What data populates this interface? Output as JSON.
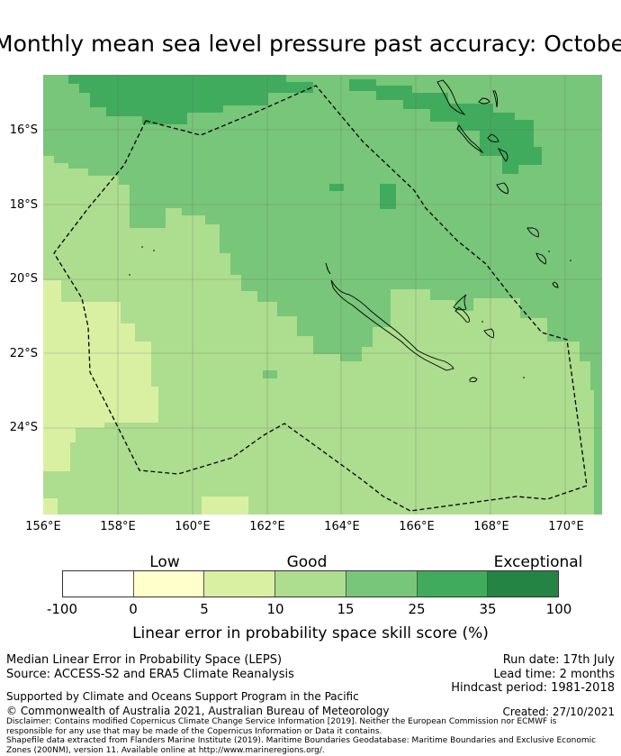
{
  "title": "Monthly mean sea level pressure past accuracy: October",
  "map": {
    "lon_labels": [
      "156°E",
      "158°E",
      "160°E",
      "162°E",
      "164°E",
      "166°E",
      "168°E",
      "170°E"
    ],
    "lat_labels": [
      "16°S",
      "18°S",
      "20°S",
      "22°S",
      "24°S"
    ],
    "colors": {
      "band_0_5": "#ffffcc",
      "band_5_10": "#d9f0a3",
      "band_10_15": "#addd8e",
      "band_15_25": "#78c679",
      "band_25_35": "#41ab5d",
      "band_35_100": "#238443",
      "coastline": "#000000",
      "eez_boundary": "#000000",
      "gridline": "#808080"
    }
  },
  "legend": {
    "categories": [
      "Low",
      "Good",
      "Exceptional"
    ],
    "ticks": [
      "-100",
      "0",
      "5",
      "10",
      "15",
      "25",
      "35",
      "100"
    ],
    "colors": [
      "#ffffff",
      "#ffffcc",
      "#d9f0a3",
      "#addd8e",
      "#78c679",
      "#41ab5d",
      "#238443"
    ],
    "label": "Linear error in probability space skill score (%)"
  },
  "info": {
    "line1": "Median Linear Error in Probability Space (LEPS)",
    "line2": "Source: ACCESS-S2 and ERA5 Climate Reanalysis",
    "run_date": "Run date: 17th July",
    "lead_time": "Lead time: 2 months",
    "hindcast": "Hindcast period: 1981-2018",
    "support": "Supported by Climate and Oceans Support Program in the Pacific",
    "copyright": "© Commonwealth of Australia 2021, Australian Bureau of Meteorology",
    "created": "Created: 27/10/2021",
    "disclaimer1": "Disclaimer: Contains modified Copernicus Climate Change Service Information [2019]. Neither the European Commission nor ECMWF is",
    "disclaimer2": "responsible for any use that may be made of the Copernicus Information or Data it contains.",
    "disclaimer3": "Shapefile data extracted from Flanders Marine Institute (2019). Maritime Boundaries Geodatabase: Maritime Boundaries and Exclusive Economic",
    "disclaimer4": "Zones (200NM), version 11. Available online at http://www.marineregions.org/."
  }
}
